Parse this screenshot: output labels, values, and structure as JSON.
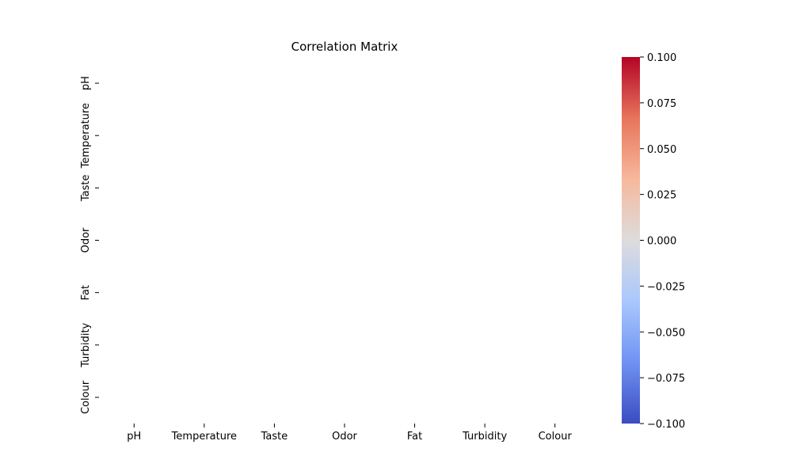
{
  "chart_data": {
    "type": "heatmap",
    "title": "Correlation Matrix",
    "x_categories": [
      "pH",
      "Temperature",
      "Taste",
      "Odor",
      "Fat",
      "Turbidity",
      "Colour"
    ],
    "y_categories": [
      "pH",
      "Temperature",
      "Taste",
      "Odor",
      "Fat",
      "Turbidity",
      "Colour"
    ],
    "values": [],
    "colormap": "coolwarm",
    "colorbar": {
      "vmin": -0.1,
      "vmax": 0.1,
      "ticks": [
        -0.1,
        -0.075,
        -0.05,
        -0.025,
        0.0,
        0.025,
        0.05,
        0.075,
        0.1
      ],
      "tick_labels": [
        "−0.100",
        "−0.075",
        "−0.050",
        "−0.025",
        "0.000",
        "0.025",
        "0.050",
        "0.075",
        "0.100"
      ],
      "colors": {
        "min": "#3b4cc0",
        "low": "#6f92f3",
        "lowmid": "#aac7fd",
        "mid": "#dddcdc",
        "highmid": "#f7b89c",
        "high": "#e7745b",
        "max": "#b40426"
      }
    },
    "grid": false
  }
}
